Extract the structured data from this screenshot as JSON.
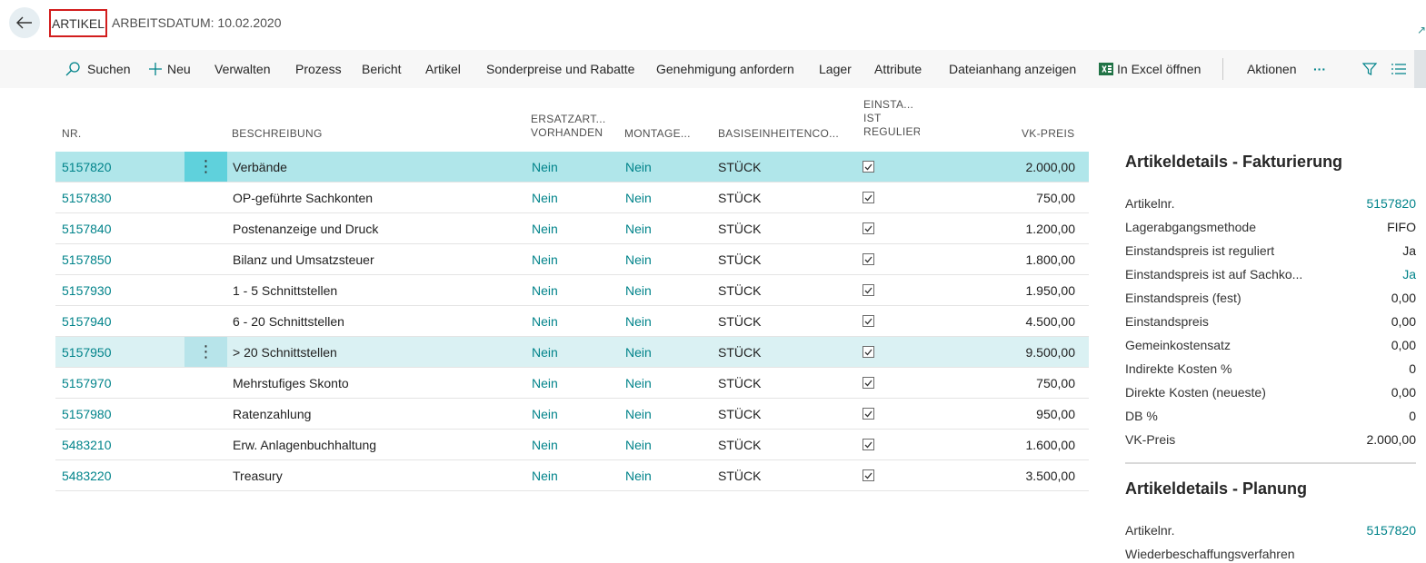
{
  "header": {
    "breadcrumb": "ARTIKEL",
    "workdate": "ARBEITSDATUM: 10.02.2020"
  },
  "commands": {
    "search": "Suchen",
    "new": "Neu",
    "manage": "Verwalten",
    "process": "Prozess",
    "report": "Bericht",
    "item": "Artikel",
    "special_prices": "Sonderpreise und Rabatte",
    "approval": "Genehmigung anfordern",
    "inventory": "Lager",
    "attributes": "Attribute",
    "attachments": "Dateianhang anzeigen",
    "excel": "In Excel öffnen",
    "actions": "Aktionen",
    "more": "···"
  },
  "columns": {
    "nr": "NR.",
    "description": "BESCHREIBUNG",
    "ersatz_line1": "ERSATZART...",
    "ersatz_line2": "VORHANDEN",
    "montage": "MONTAGE...",
    "basis": "BASISEINHEITENCO...",
    "einsta_line1": "EINSTA...",
    "einsta_line2": "IST",
    "einsta_line3": "REGULIERT",
    "price": "VK-PREIS"
  },
  "rows": [
    {
      "nr": "5157820",
      "description": "Verbände",
      "ersatz": "Nein",
      "montage": "Nein",
      "basis": "STÜCK",
      "checked": true,
      "price": "2.000,00"
    },
    {
      "nr": "5157830",
      "description": "OP-geführte Sachkonten",
      "ersatz": "Nein",
      "montage": "Nein",
      "basis": "STÜCK",
      "checked": true,
      "price": "750,00"
    },
    {
      "nr": "5157840",
      "description": "Postenanzeige und Druck",
      "ersatz": "Nein",
      "montage": "Nein",
      "basis": "STÜCK",
      "checked": true,
      "price": "1.200,00"
    },
    {
      "nr": "5157850",
      "description": "Bilanz und Umsatzsteuer",
      "ersatz": "Nein",
      "montage": "Nein",
      "basis": "STÜCK",
      "checked": true,
      "price": "1.800,00"
    },
    {
      "nr": "5157930",
      "description": "1 - 5 Schnittstellen",
      "ersatz": "Nein",
      "montage": "Nein",
      "basis": "STÜCK",
      "checked": true,
      "price": "1.950,00"
    },
    {
      "nr": "5157940",
      "description": "6 - 20 Schnittstellen",
      "ersatz": "Nein",
      "montage": "Nein",
      "basis": "STÜCK",
      "checked": true,
      "price": "4.500,00"
    },
    {
      "nr": "5157950",
      "description": "> 20 Schnittstellen",
      "ersatz": "Nein",
      "montage": "Nein",
      "basis": "STÜCK",
      "checked": true,
      "price": "9.500,00"
    },
    {
      "nr": "5157970",
      "description": "Mehrstufiges Skonto",
      "ersatz": "Nein",
      "montage": "Nein",
      "basis": "STÜCK",
      "checked": true,
      "price": "750,00"
    },
    {
      "nr": "5157980",
      "description": "Ratenzahlung",
      "ersatz": "Nein",
      "montage": "Nein",
      "basis": "STÜCK",
      "checked": true,
      "price": "950,00"
    },
    {
      "nr": "5483210",
      "description": "Erw. Anlagenbuchhaltung",
      "ersatz": "Nein",
      "montage": "Nein",
      "basis": "STÜCK",
      "checked": true,
      "price": "1.600,00"
    },
    {
      "nr": "5483220",
      "description": "Treasury",
      "ersatz": "Nein",
      "montage": "Nein",
      "basis": "STÜCK",
      "checked": true,
      "price": "3.500,00"
    }
  ],
  "factbox_invoicing": {
    "title": "Artikeldetails - Fakturierung",
    "fields": [
      {
        "label": "Artikelnr.",
        "value": "5157820",
        "link": true
      },
      {
        "label": "Lagerabgangsmethode",
        "value": "FIFO",
        "link": false
      },
      {
        "label": "Einstandspreis ist reguliert",
        "value": "Ja",
        "link": false
      },
      {
        "label": "Einstandspreis ist auf Sachko...",
        "value": "Ja",
        "link": true
      },
      {
        "label": "Einstandspreis (fest)",
        "value": "0,00",
        "link": false
      },
      {
        "label": "Einstandspreis",
        "value": "0,00",
        "link": false
      },
      {
        "label": "Gemeinkostensatz",
        "value": "0,00",
        "link": false
      },
      {
        "label": "Indirekte Kosten %",
        "value": "0",
        "link": false
      },
      {
        "label": "Direkte Kosten (neueste)",
        "value": "0,00",
        "link": false
      },
      {
        "label": "DB %",
        "value": "0",
        "link": false
      },
      {
        "label": "VK-Preis",
        "value": "2.000,00",
        "link": false
      }
    ]
  },
  "factbox_planning": {
    "title": "Artikeldetails - Planung",
    "fields": [
      {
        "label": "Artikelnr.",
        "value": "5157820",
        "link": true
      },
      {
        "label": "Wiederbeschaffungsverfahren",
        "value": "",
        "link": false
      }
    ]
  },
  "colors": {
    "accent": "#00838a",
    "selected_row": "#b0e6ea",
    "highlight_box": "#d21d1d",
    "excel_green": "#217346"
  }
}
